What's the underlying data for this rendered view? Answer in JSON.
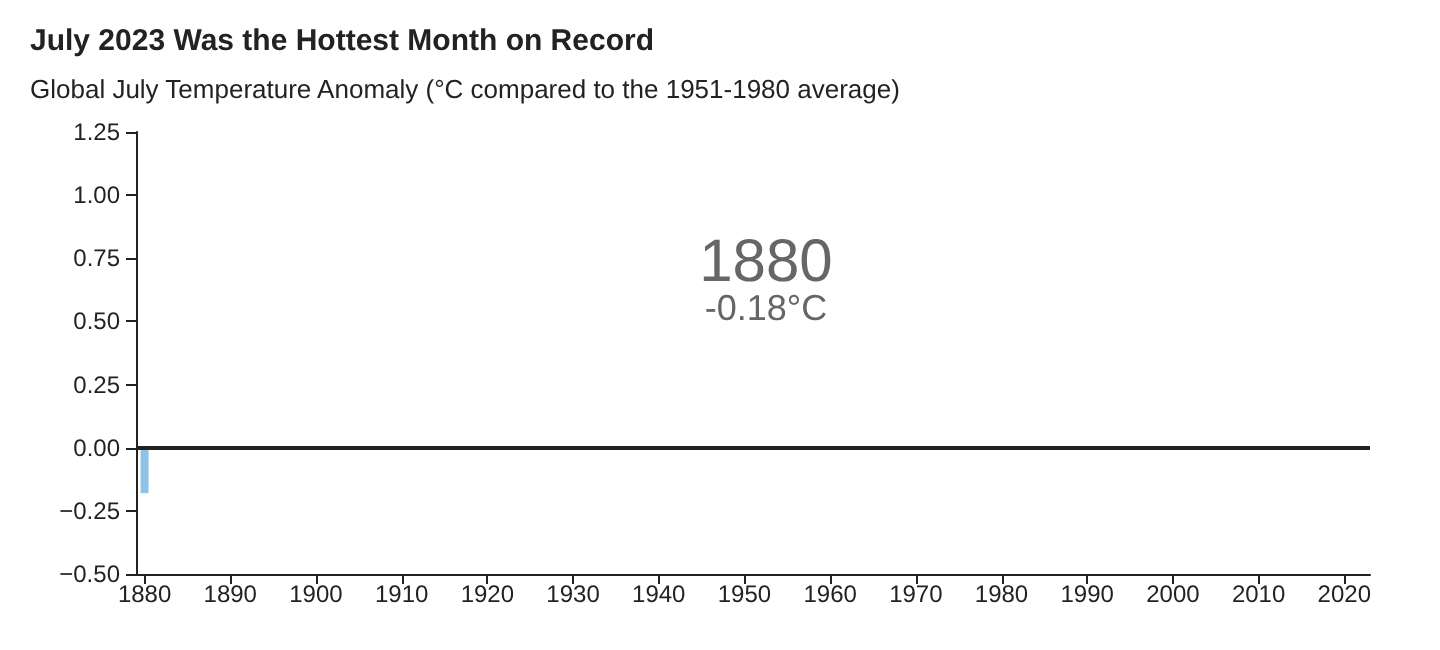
{
  "chart_data": {
    "type": "bar",
    "title": "July 2023 Was the Hottest Month on Record",
    "subtitle": "Global July Temperature Anomaly (°C compared to the 1951-1980 average)",
    "x": [
      1880
    ],
    "values": [
      -0.18
    ],
    "color": "#8ec3e6",
    "xlim": [
      1879,
      2023
    ],
    "xticks": [
      1880,
      1890,
      1900,
      1910,
      1920,
      1930,
      1940,
      1950,
      1960,
      1970,
      1980,
      1990,
      2000,
      2010,
      2020
    ],
    "ylim": [
      -0.5,
      1.25
    ],
    "yticks": [
      {
        "value": -0.5,
        "label": "−0.50"
      },
      {
        "value": -0.25,
        "label": "−0.25"
      },
      {
        "value": 0,
        "label": "0.00"
      },
      {
        "value": 0.25,
        "label": "0.25"
      },
      {
        "value": 0.5,
        "label": "0.50"
      },
      {
        "value": 0.75,
        "label": "0.75"
      },
      {
        "value": 1,
        "label": "1.00"
      },
      {
        "value": 1.25,
        "label": "1.25"
      }
    ],
    "ref_lines": [
      {
        "axis": "y",
        "value": 0,
        "color": "#222222"
      }
    ],
    "annotations": [
      "1880",
      "-0.18°C"
    ],
    "grid": false
  }
}
